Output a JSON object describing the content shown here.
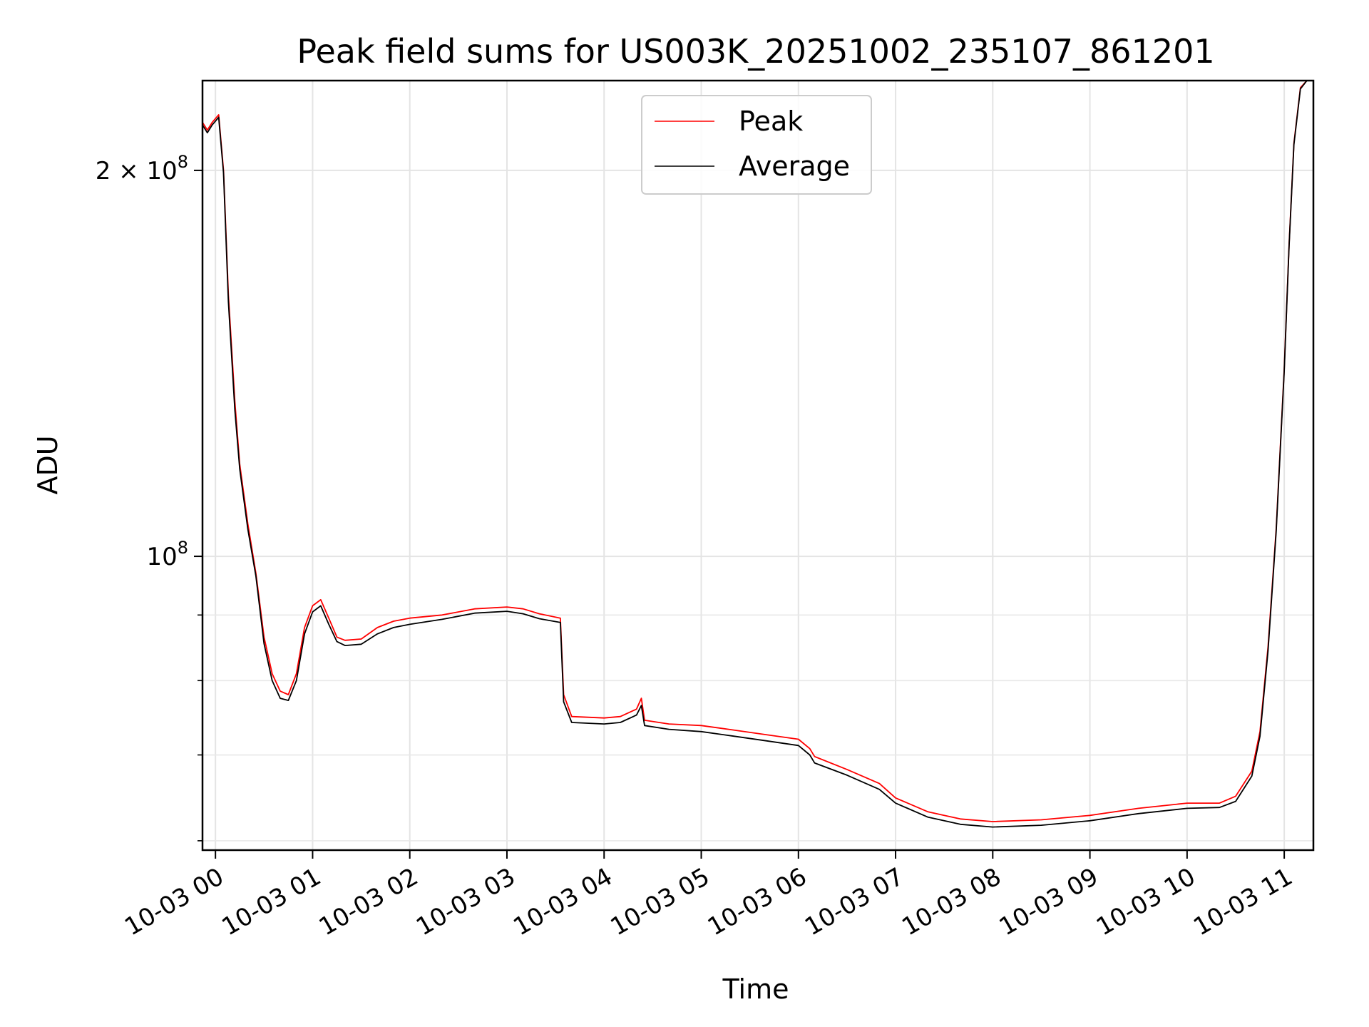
{
  "chart_data": {
    "type": "line",
    "title": "Peak field sums for US003K_20251002_235107_861201",
    "xlabel": "Time",
    "ylabel": "ADU",
    "y_scale": "log",
    "ylim": [
      59000000,
      235000000
    ],
    "xlim": [
      "10-02 23:52",
      "10-03 11:18"
    ],
    "grid": true,
    "legend_position": "upper-center",
    "x_ticks": [
      {
        "t": "10-03 00:00",
        "label": "10-03 00"
      },
      {
        "t": "10-03 01:00",
        "label": "10-03 01"
      },
      {
        "t": "10-03 02:00",
        "label": "10-03 02"
      },
      {
        "t": "10-03 03:00",
        "label": "10-03 03"
      },
      {
        "t": "10-03 04:00",
        "label": "10-03 04"
      },
      {
        "t": "10-03 05:00",
        "label": "10-03 05"
      },
      {
        "t": "10-03 06:00",
        "label": "10-03 06"
      },
      {
        "t": "10-03 07:00",
        "label": "10-03 07"
      },
      {
        "t": "10-03 08:00",
        "label": "10-03 08"
      },
      {
        "t": "10-03 09:00",
        "label": "10-03 09"
      },
      {
        "t": "10-03 10:00",
        "label": "10-03 10"
      },
      {
        "t": "10-03 11:00",
        "label": "10-03 11"
      }
    ],
    "y_major_ticks": [
      {
        "value": 100000000,
        "label_base": "10",
        "label_exp": "8",
        "label_prefix": ""
      },
      {
        "value": 200000000,
        "label_base": "10",
        "label_exp": "8",
        "label_prefix": "2 × "
      }
    ],
    "y_minor_ticks": [
      60000000,
      70000000,
      80000000,
      90000000
    ],
    "series": [
      {
        "name": "Peak",
        "color": "#ff0000",
        "x": [
          "10-02 23:52",
          "10-02 23:55",
          "10-02 23:58",
          "10-03 00:02",
          "10-03 00:05",
          "10-03 00:08",
          "10-03 00:12",
          "10-03 00:15",
          "10-03 00:20",
          "10-03 00:25",
          "10-03 00:30",
          "10-03 00:35",
          "10-03 00:40",
          "10-03 00:45",
          "10-03 00:50",
          "10-03 00:55",
          "10-03 01:00",
          "10-03 01:05",
          "10-03 01:10",
          "10-03 01:15",
          "10-03 01:20",
          "10-03 01:30",
          "10-03 01:40",
          "10-03 01:50",
          "10-03 02:00",
          "10-03 02:20",
          "10-03 02:40",
          "10-03 03:00",
          "10-03 03:10",
          "10-03 03:20",
          "10-03 03:33",
          "10-03 03:35",
          "10-03 03:40",
          "10-03 04:00",
          "10-03 04:10",
          "10-03 04:20",
          "10-03 04:23",
          "10-03 04:25",
          "10-03 04:40",
          "10-03 05:00",
          "10-03 05:20",
          "10-03 05:40",
          "10-03 06:00",
          "10-03 06:07",
          "10-03 06:10",
          "10-03 06:30",
          "10-03 06:50",
          "10-03 07:00",
          "10-03 07:20",
          "10-03 07:40",
          "10-03 08:00",
          "10-03 08:30",
          "10-03 09:00",
          "10-03 09:30",
          "10-03 10:00",
          "10-03 10:20",
          "10-03 10:30",
          "10-03 10:40",
          "10-03 10:45",
          "10-03 10:50",
          "10-03 10:55",
          "10-03 11:00",
          "10-03 11:03",
          "10-03 11:06",
          "10-03 11:10",
          "10-03 11:14",
          "10-03 11:18"
        ],
        "values": [
          218000000,
          215000000,
          218000000,
          221000000,
          200000000,
          160000000,
          132000000,
          118000000,
          106000000,
          97000000,
          86500000,
          81000000,
          78500000,
          78000000,
          81000000,
          88000000,
          91500000,
          92500000,
          89500000,
          86500000,
          86000000,
          86200000,
          88000000,
          89000000,
          89500000,
          90000000,
          91000000,
          91300000,
          91000000,
          90200000,
          89500000,
          78000000,
          75000000,
          74800000,
          75000000,
          76000000,
          77500000,
          74500000,
          74000000,
          73800000,
          73200000,
          72600000,
          72000000,
          70800000,
          69800000,
          68200000,
          66500000,
          64800000,
          63200000,
          62400000,
          62100000,
          62300000,
          62800000,
          63600000,
          64200000,
          64200000,
          65000000,
          68000000,
          73000000,
          85000000,
          105000000,
          140000000,
          175000000,
          210000000,
          232000000,
          235000000,
          235000000
        ]
      },
      {
        "name": "Average",
        "color": "#000000",
        "x": [
          "10-02 23:52",
          "10-02 23:55",
          "10-02 23:58",
          "10-03 00:02",
          "10-03 00:05",
          "10-03 00:08",
          "10-03 00:12",
          "10-03 00:15",
          "10-03 00:20",
          "10-03 00:25",
          "10-03 00:30",
          "10-03 00:35",
          "10-03 00:40",
          "10-03 00:45",
          "10-03 00:50",
          "10-03 00:55",
          "10-03 01:00",
          "10-03 01:05",
          "10-03 01:10",
          "10-03 01:15",
          "10-03 01:20",
          "10-03 01:30",
          "10-03 01:40",
          "10-03 01:50",
          "10-03 02:00",
          "10-03 02:20",
          "10-03 02:40",
          "10-03 03:00",
          "10-03 03:10",
          "10-03 03:20",
          "10-03 03:33",
          "10-03 03:35",
          "10-03 03:40",
          "10-03 04:00",
          "10-03 04:10",
          "10-03 04:20",
          "10-03 04:23",
          "10-03 04:25",
          "10-03 04:40",
          "10-03 05:00",
          "10-03 05:20",
          "10-03 05:40",
          "10-03 06:00",
          "10-03 06:07",
          "10-03 06:10",
          "10-03 06:30",
          "10-03 06:50",
          "10-03 07:00",
          "10-03 07:20",
          "10-03 07:40",
          "10-03 08:00",
          "10-03 08:30",
          "10-03 09:00",
          "10-03 09:30",
          "10-03 10:00",
          "10-03 10:20",
          "10-03 10:30",
          "10-03 10:40",
          "10-03 10:45",
          "10-03 10:50",
          "10-03 10:55",
          "10-03 11:00",
          "10-03 11:03",
          "10-03 11:06",
          "10-03 11:10",
          "10-03 11:14",
          "10-03 11:18"
        ],
        "values": [
          217000000,
          214000000,
          217000000,
          220000000,
          199000000,
          158000000,
          130000000,
          117000000,
          105000000,
          96500000,
          85500000,
          80000000,
          77500000,
          77200000,
          80000000,
          87000000,
          90500000,
          91500000,
          88500000,
          85800000,
          85200000,
          85400000,
          87000000,
          88000000,
          88500000,
          89300000,
          90300000,
          90600000,
          90200000,
          89400000,
          88800000,
          77000000,
          74200000,
          74000000,
          74200000,
          75200000,
          76500000,
          73800000,
          73300000,
          73000000,
          72400000,
          71800000,
          71200000,
          70000000,
          69000000,
          67500000,
          65800000,
          64200000,
          62600000,
          61800000,
          61500000,
          61700000,
          62200000,
          63000000,
          63600000,
          63700000,
          64400000,
          67400000,
          72400000,
          84400000,
          104500000,
          139500000,
          174500000,
          209500000,
          231500000,
          235000000,
          235000000
        ]
      }
    ]
  }
}
